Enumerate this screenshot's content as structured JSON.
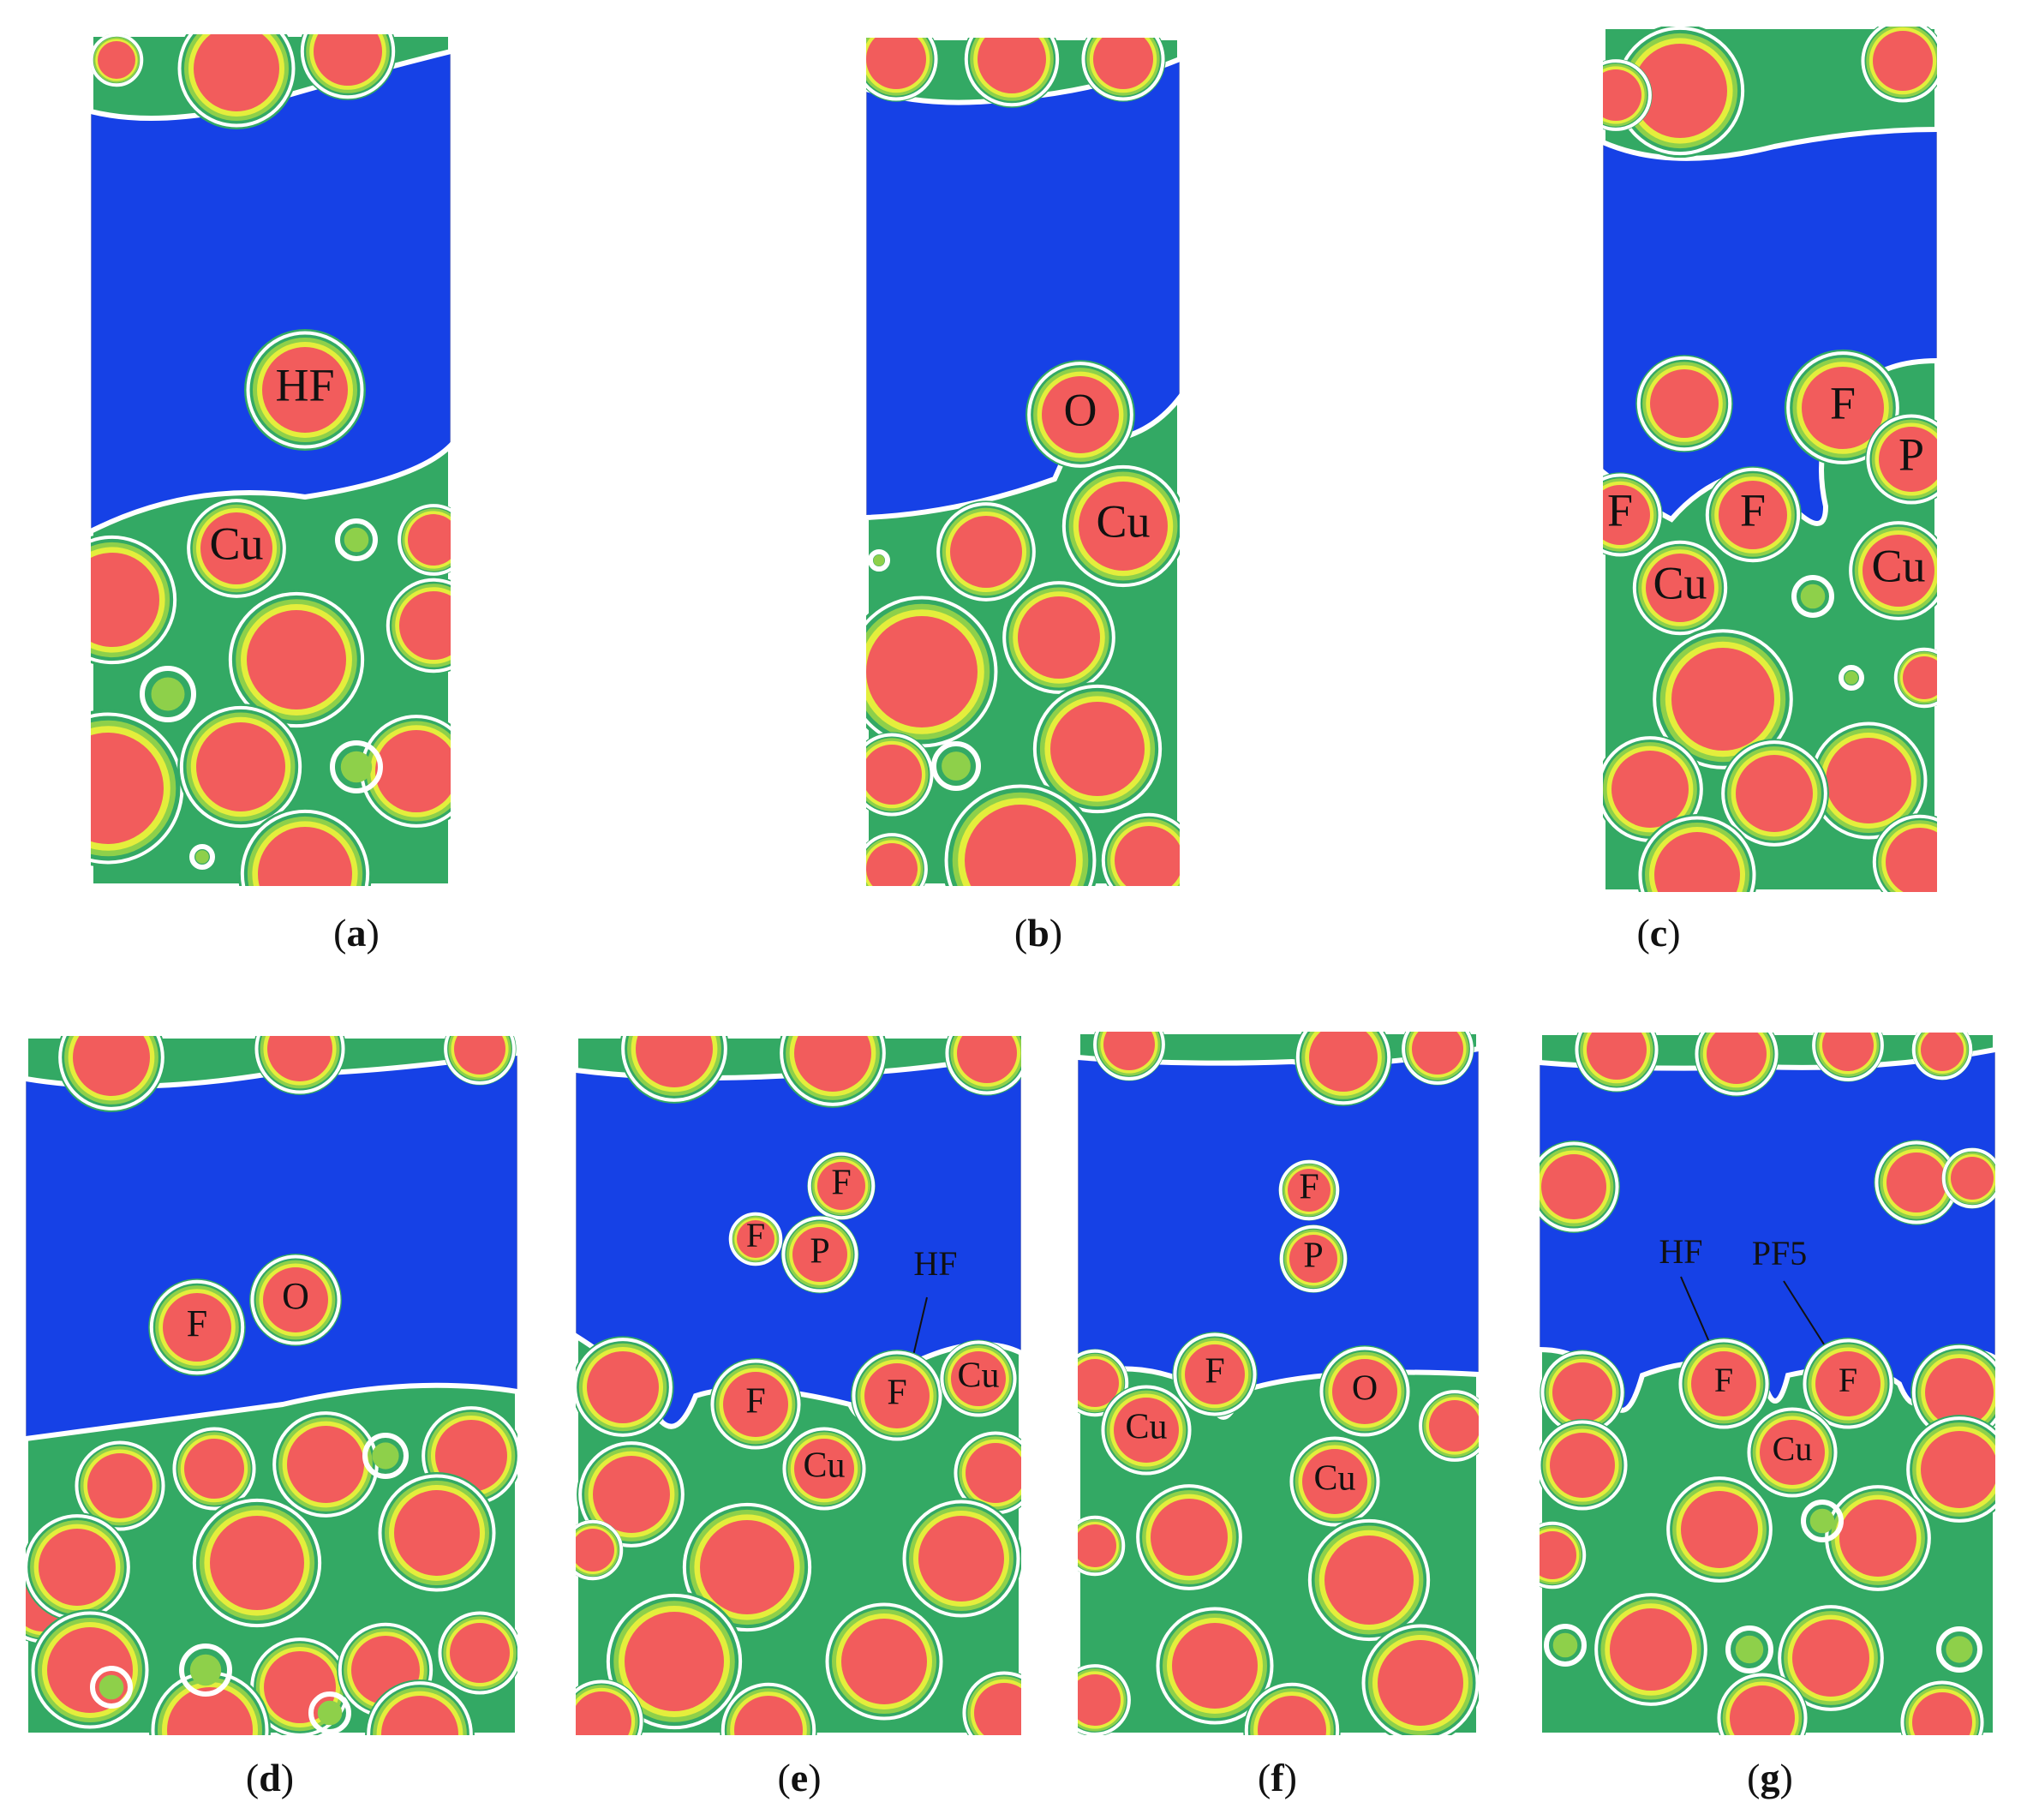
{
  "colors": {
    "background": "#1641e6",
    "bulk": "#33a964",
    "bulk_dark": "#2a8fb0",
    "ring_white": "#ffffff",
    "ring_yellow": "#e4ee3c",
    "ring_green": "#8ed04a",
    "atom_core": "#f25c5c"
  },
  "panels": [
    {
      "id": "a",
      "caption_letter": "a",
      "labels": [
        {
          "text": "HF"
        },
        {
          "text": "Cu"
        }
      ]
    },
    {
      "id": "b",
      "caption_letter": "b",
      "labels": [
        {
          "text": "O"
        },
        {
          "text": "Cu"
        }
      ]
    },
    {
      "id": "c",
      "caption_letter": "c",
      "labels": [
        {
          "text": "F"
        },
        {
          "text": "P"
        },
        {
          "text": "F"
        },
        {
          "text": "F"
        },
        {
          "text": "Cu"
        },
        {
          "text": "Cu"
        }
      ]
    },
    {
      "id": "d",
      "caption_letter": "d",
      "labels": [
        {
          "text": "F"
        },
        {
          "text": "O"
        }
      ]
    },
    {
      "id": "e",
      "caption_letter": "e",
      "labels": [
        {
          "text": "F"
        },
        {
          "text": "F"
        },
        {
          "text": "P"
        },
        {
          "text": "HF"
        },
        {
          "text": "F"
        },
        {
          "text": "F"
        },
        {
          "text": "Cu"
        },
        {
          "text": "Cu"
        }
      ]
    },
    {
      "id": "f",
      "caption_letter": "f",
      "labels": [
        {
          "text": "F"
        },
        {
          "text": "P"
        },
        {
          "text": "F"
        },
        {
          "text": "O"
        },
        {
          "text": "Cu"
        },
        {
          "text": "Cu"
        }
      ]
    },
    {
      "id": "g",
      "caption_letter": "g",
      "labels": [
        {
          "text": "HF"
        },
        {
          "text": "PF5"
        },
        {
          "text": "F"
        },
        {
          "text": "F"
        },
        {
          "text": "Cu"
        }
      ]
    }
  ]
}
